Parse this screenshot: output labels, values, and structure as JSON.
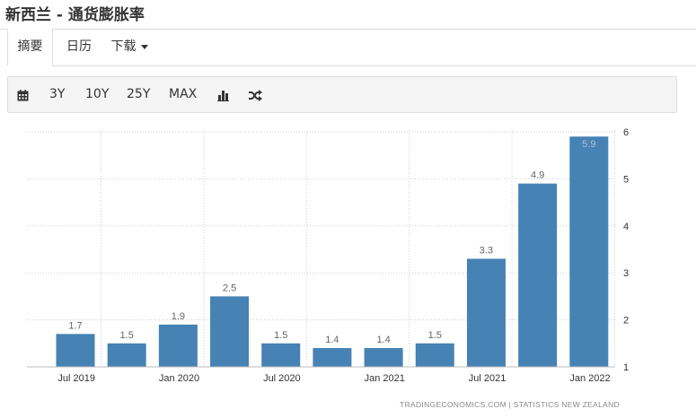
{
  "page": {
    "title": "新西兰 - 通货膨胀率"
  },
  "tabs": [
    {
      "label": "摘要",
      "active": true
    },
    {
      "label": "日历",
      "active": false
    },
    {
      "label": "下载",
      "active": false
    }
  ],
  "toolbar": {
    "calendar_icon": "calendar-icon",
    "range_3y": "3Y",
    "range_10y": "10Y",
    "range_25y": "25Y",
    "range_max": "MAX",
    "bar_chart_icon": "bar-chart-icon",
    "shuffle_icon": "shuffle-icon"
  },
  "colors": {
    "bar": "#4682b4",
    "label": "#666666",
    "label_inside": "#a9c4dc",
    "grid": "#cccccc"
  },
  "chart_data": {
    "type": "bar",
    "categories": [
      "Jun 2019",
      "Sep 2019",
      "Dec 2019",
      "Mar 2020",
      "Jun 2020",
      "Sep 2020",
      "Dec 2020",
      "Mar 2021",
      "Jun 2021",
      "Sep 2021",
      "Dec 2021"
    ],
    "values": [
      1.7,
      1.5,
      1.9,
      2.5,
      1.5,
      1.4,
      1.4,
      1.5,
      3.3,
      4.9,
      5.9
    ],
    "x_tick_labels": [
      "Jul 2019",
      "Jan 2020",
      "Jul 2020",
      "Jan 2021",
      "Jul 2021",
      "Jan 2022"
    ],
    "y_ticks": [
      1,
      2,
      3,
      4,
      5,
      6
    ],
    "ylim": [
      1,
      6
    ],
    "grid": true,
    "y_axis_position": "right",
    "source": "TRADINGECONOMICS.COM  |  STATISTICS NEW ZEALAND"
  }
}
